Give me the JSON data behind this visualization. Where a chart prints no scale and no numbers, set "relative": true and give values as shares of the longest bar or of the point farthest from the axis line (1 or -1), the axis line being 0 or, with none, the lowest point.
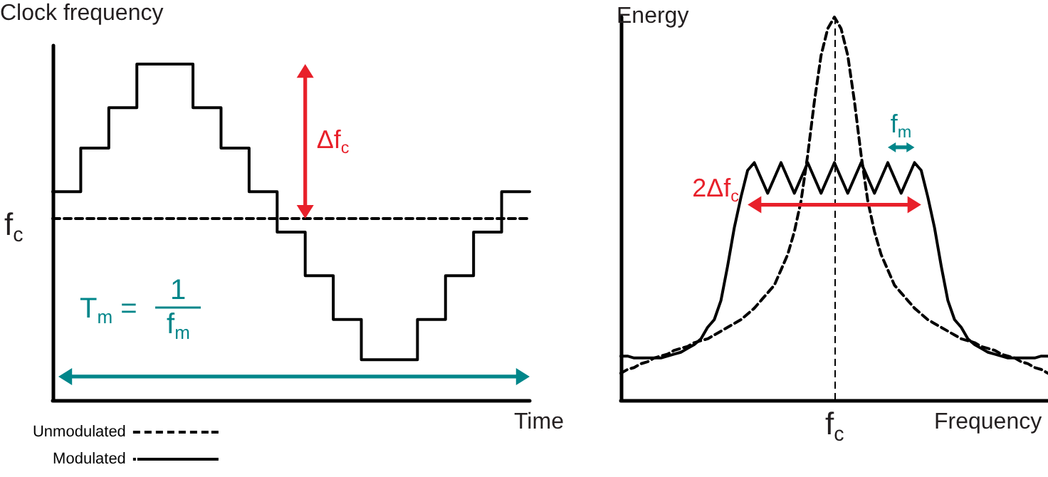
{
  "chart_data": [
    {
      "type": "step",
      "relative": true,
      "xlabel": "Time",
      "ylabel": "Clock frequency",
      "legend": "bottom left",
      "annotations": [
        "Δf$_{c}$",
        "T$_{m}$ =",
        "1",
        "f$_{m}$",
        "f$_{c}$"
      ],
      "categories": [
        null,
        null,
        null,
        null,
        null,
        null,
        null,
        null,
        null,
        null,
        null,
        null,
        null,
        null,
        null,
        null,
        null,
        null
      ],
      "series": [
        {
          "name": "Unmodulated",
          "type": "line",
          "color": "#000000",
          "line_style": "dashed",
          "values": [
            0.54,
            0.54,
            0.54,
            0.54,
            0.54,
            0.54,
            0.54,
            0.54,
            0.54,
            0.54,
            0.54,
            0.54,
            0.54,
            0.54,
            0.54,
            0.54,
            0.54,
            0.54
          ]
        },
        {
          "name": "Modulated",
          "color": "#000000",
          "line_style": "solid",
          "values": [
            0.62,
            0.75,
            0.87,
            1,
            1,
            0.87,
            0.75,
            0.62,
            0.5,
            0.37,
            0.24,
            0.12,
            0.12,
            0.24,
            0.37,
            0.5,
            0.62,
            0.62
          ]
        }
      ]
    },
    {
      "type": "line",
      "relative": true,
      "xlabel": "Frequency",
      "ylabel": "Energy",
      "annotations": [
        "2Δf$_{c}$",
        "f$_{m}$"
      ],
      "ref_lines": [
        {
          "axis": "x",
          "label": "f$_{c}$",
          "line_style": "dashed",
          "color": "#000000"
        }
      ],
      "categories": [
        null,
        null,
        null,
        null,
        null,
        null,
        null,
        null,
        null,
        null,
        null,
        null,
        null,
        null,
        null,
        null,
        null,
        null,
        null,
        null,
        null,
        null,
        null,
        null,
        null,
        null,
        null,
        null,
        null,
        null,
        null,
        null,
        null,
        null,
        null,
        null,
        null,
        null,
        null,
        null,
        null,
        null,
        null,
        null,
        null,
        null,
        null,
        null,
        null,
        null,
        null,
        null,
        null,
        null,
        null,
        null,
        null,
        null,
        null,
        null,
        null,
        null,
        null,
        null,
        null
      ],
      "series": [
        {
          "color": "#000000",
          "line_style": "dashed",
          "values": [
            0.07,
            0.08,
            0.085,
            0.095,
            0.1,
            0.11,
            0.115,
            0.12,
            0.13,
            0.135,
            0.14,
            0.15,
            0.155,
            0.16,
            0.17,
            0.18,
            0.19,
            0.2,
            0.21,
            0.225,
            0.24,
            0.26,
            0.28,
            0.3,
            0.34,
            0.38,
            0.44,
            0.52,
            0.64,
            0.78,
            0.9,
            0.97,
            1,
            0.97,
            0.9,
            0.78,
            0.64,
            0.52,
            0.44,
            0.38,
            0.34,
            0.3,
            0.28,
            0.26,
            0.24,
            0.225,
            0.21,
            0.2,
            0.19,
            0.18,
            0.17,
            0.16,
            0.155,
            0.15,
            0.14,
            0.135,
            0.13,
            0.12,
            0.115,
            0.11,
            0.1,
            0.095,
            0.085,
            0.08,
            0.07
          ]
        },
        {
          "color": "#000000",
          "line_style": "solid",
          "values": [
            0.115,
            0.115,
            0.11,
            0.11,
            0.11,
            0.11,
            0.11,
            0.115,
            0.12,
            0.125,
            0.135,
            0.145,
            0.16,
            0.19,
            0.21,
            0.26,
            0.35,
            0.45,
            0.53,
            0.6,
            0.62,
            0.58,
            0.54,
            0.58,
            0.62,
            0.58,
            0.54,
            0.58,
            0.62,
            0.58,
            0.54,
            0.58,
            0.62,
            0.58,
            0.54,
            0.58,
            0.62,
            0.58,
            0.54,
            0.58,
            0.62,
            0.58,
            0.54,
            0.58,
            0.62,
            0.6,
            0.53,
            0.45,
            0.35,
            0.26,
            0.21,
            0.19,
            0.16,
            0.145,
            0.135,
            0.125,
            0.12,
            0.115,
            0.11,
            0.11,
            0.11,
            0.11,
            0.11,
            0.115,
            0.115
          ]
        }
      ]
    }
  ]
}
